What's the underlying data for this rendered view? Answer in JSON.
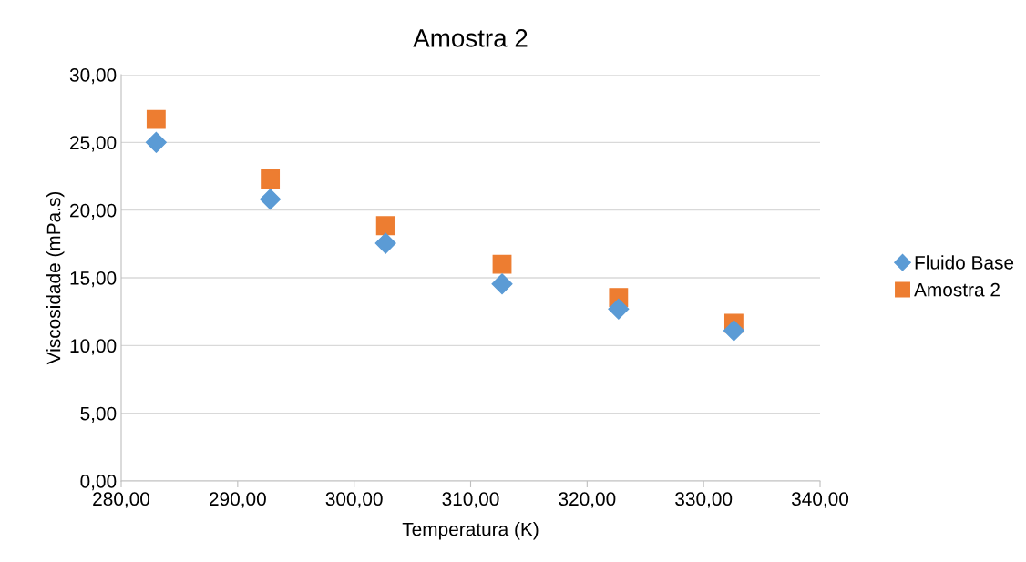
{
  "chart_data": {
    "type": "scatter",
    "title": "Amostra 2",
    "xlabel": "Temperatura (K)",
    "ylabel": "Viscosidade (mPa.s)",
    "x": [
      283.0,
      292.8,
      302.7,
      312.7,
      322.7,
      332.6
    ],
    "series": [
      {
        "name": "Fluido Base",
        "color": "#5b9bd5",
        "marker": "diamond",
        "values": [
          25.0,
          20.8,
          17.55,
          14.55,
          12.7,
          11.1
        ]
      },
      {
        "name": "Amostra 2",
        "color": "#ed7d31",
        "marker": "square",
        "values": [
          26.7,
          22.3,
          18.85,
          16.0,
          13.55,
          11.65
        ]
      }
    ],
    "xlim": [
      280,
      340
    ],
    "xticks": [
      {
        "value": 280,
        "label": "280,00"
      },
      {
        "value": 290,
        "label": "290,00"
      },
      {
        "value": 300,
        "label": "300,00"
      },
      {
        "value": 310,
        "label": "310,00"
      },
      {
        "value": 320,
        "label": "320,00"
      },
      {
        "value": 330,
        "label": "330,00"
      },
      {
        "value": 340,
        "label": "340,00"
      }
    ],
    "ylim": [
      0,
      30
    ],
    "yticks": [
      {
        "value": 0,
        "label": "0,00"
      },
      {
        "value": 5,
        "label": "5,00"
      },
      {
        "value": 10,
        "label": "10,00"
      },
      {
        "value": 15,
        "label": "15,00"
      },
      {
        "value": 20,
        "label": "20,00"
      },
      {
        "value": 25,
        "label": "25,00"
      },
      {
        "value": 30,
        "label": "30,00"
      }
    ],
    "grid": "y",
    "legend": "right"
  }
}
